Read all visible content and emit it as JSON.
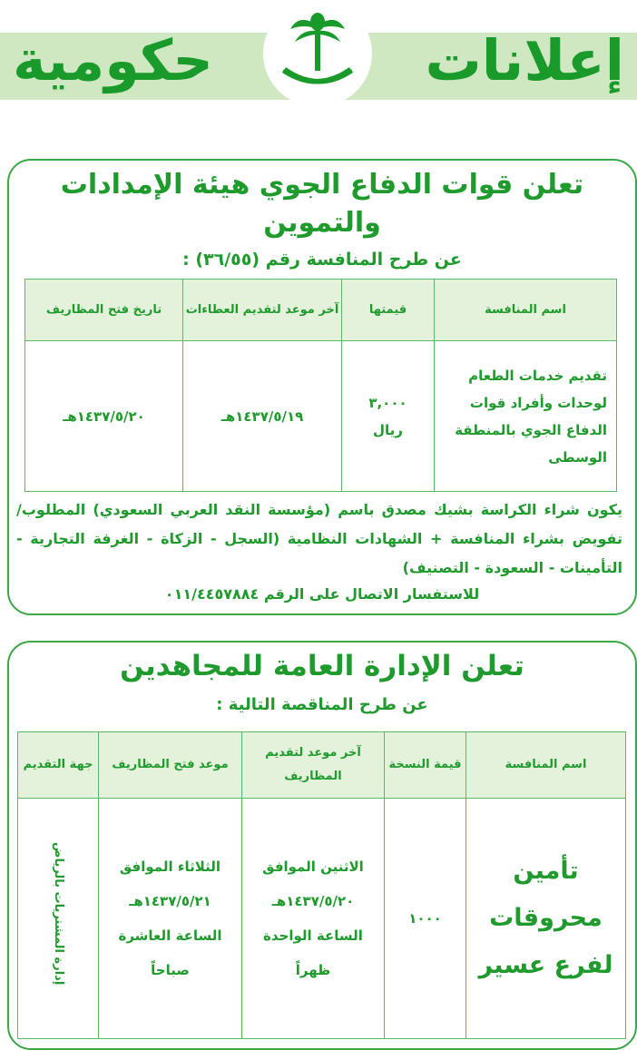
{
  "header": {
    "word1": "إعلانات",
    "word2": "حكومية",
    "emblem": "palm-and-swords-emblem"
  },
  "ad1": {
    "title": "تعلن قوات الدفاع الجوي هيئة الإمدادات والتموين",
    "subtitle": "عن طرح المنافسة رقم (٣٦/٥٥) :",
    "columns": [
      "اسم المنافسة",
      "قيمتها",
      "آخر موعد لتقديم العطاءات",
      "تاريخ فتح المظاريف"
    ],
    "row": {
      "name": "تقديم خدمات الطعام لوحدات وأفراد قوات الدفاع الجوي بالمنطقة الوسطى",
      "value": "٣,٠٠٠",
      "currency": "ريال",
      "deadline": "١٤٣٧/٥/١٩هـ",
      "opening": "١٤٣٧/٥/٢٠هـ"
    },
    "paragraph": "يكون شراء الكراسة بشيك مصدق باسم (مؤسسة النقد العربي السعودي) المطلوب/ تفويض بشراء المنافسة + الشهادات النظامية (السجل - الزكاة - الغرفة التجارية - التأمينات - السعودة - التصنيف)",
    "contact": "للاستفسار الاتصال على الرقم ٠١١/٤٤٥٧٨٨٤"
  },
  "ad2": {
    "title": "تعلن الإدارة العامة للمجاهدين",
    "subtitle": "عن طرح المناقصة التالية :",
    "columns": [
      "اسم المنافسة",
      "قيمة النسخة",
      "آخر موعد لتقديم المظاريف",
      "موعد فتح المظاريف",
      "جهة التقديم"
    ],
    "row": {
      "name": "تأمين محروقات لفرع عسير",
      "value": "١٠٠٠",
      "deadline": [
        "الاثنين الموافق",
        "١٤٣٧/٥/٢٠هـ",
        "الساعة الواحدة",
        "ظهراً"
      ],
      "opening": [
        "الثلاثاء الموافق",
        "١٤٣٧/٥/٢١هـ",
        "الساعة العاشرة",
        "صباحاً"
      ],
      "authority": "إدارة المشتريات بالرياض"
    }
  },
  "colors": {
    "green": "#1f9a2c",
    "band": "#cfe8c2",
    "table_header": "#e4f2dc"
  }
}
